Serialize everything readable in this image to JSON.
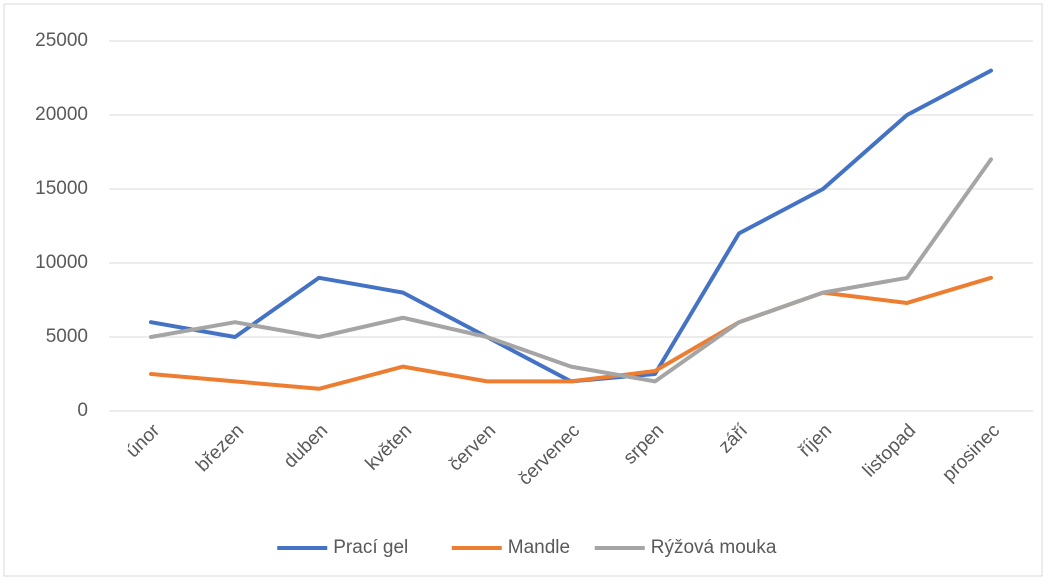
{
  "chart_data": {
    "type": "line",
    "categories": [
      "únor",
      "březen",
      "duben",
      "květen",
      "červen",
      "červenec",
      "srpen",
      "září",
      "říjen",
      "listopad",
      "prosinec"
    ],
    "series": [
      {
        "name": "Prací gel",
        "color": "#4472c4",
        "values": [
          6000,
          5000,
          9000,
          8000,
          5000,
          2000,
          2500,
          12000,
          15000,
          20000,
          23000
        ]
      },
      {
        "name": "Mandle",
        "color": "#ed7d31",
        "values": [
          2500,
          2000,
          1500,
          3000,
          2000,
          2000,
          2700,
          6000,
          8000,
          7300,
          9000
        ]
      },
      {
        "name": "Rýžová mouka",
        "color": "#a5a5a5",
        "values": [
          5000,
          6000,
          5000,
          6300,
          5000,
          3000,
          2000,
          6000,
          8000,
          9000,
          17000
        ]
      }
    ],
    "ylim": [
      0,
      25000
    ],
    "yticks": [
      0,
      5000,
      10000,
      15000,
      20000,
      25000
    ],
    "grid": true,
    "legend": "bottom"
  }
}
